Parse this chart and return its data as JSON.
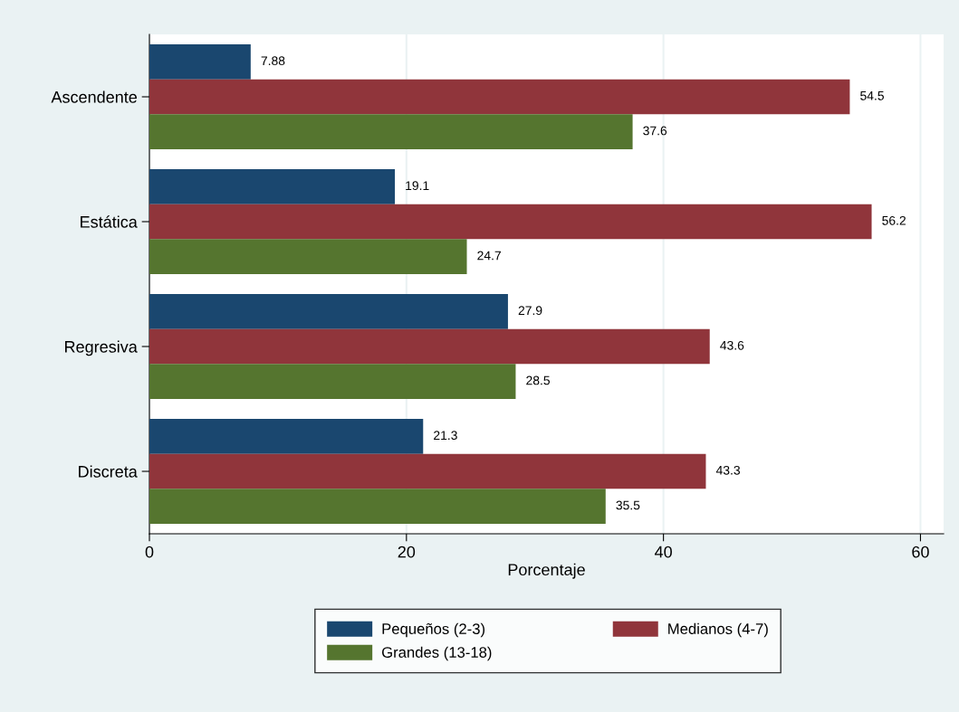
{
  "chart_data": {
    "type": "bar",
    "orientation": "horizontal",
    "xlabel": "Porcentaje",
    "categories": [
      "Ascendente",
      "Estática",
      "Regresiva",
      "Discreta"
    ],
    "series": [
      {
        "name": "Pequeños (2-3)",
        "color": "#1a476f",
        "values": [
          7.88,
          19.1,
          27.9,
          21.3
        ]
      },
      {
        "name": "Medianos (4-7)",
        "color": "#90353b",
        "values": [
          54.5,
          56.2,
          43.6,
          43.3
        ]
      },
      {
        "name": "Grandes (13-18)",
        "color": "#55752f",
        "values": [
          37.6,
          24.7,
          28.5,
          35.5
        ]
      }
    ],
    "xlim": [
      0,
      61.8
    ],
    "xticks": [
      0,
      20,
      40,
      60
    ],
    "grid": "x",
    "legend": "bottom",
    "data_labels": true
  }
}
